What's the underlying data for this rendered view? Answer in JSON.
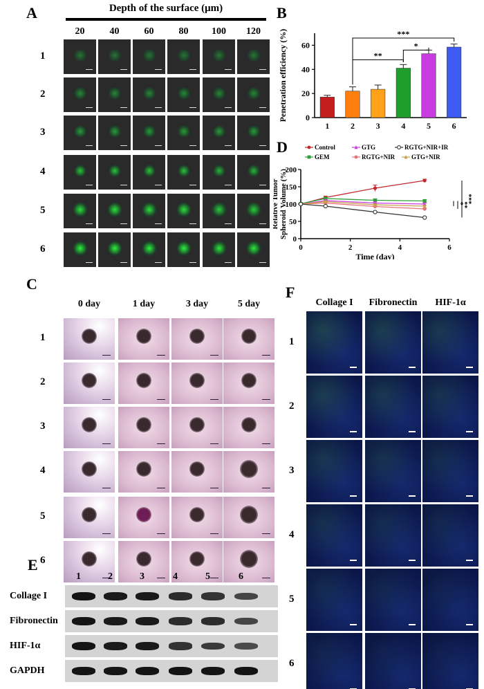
{
  "panels": {
    "A": {
      "label": "A",
      "title": "Depth of the surface (μm)",
      "depths": [
        "20",
        "40",
        "60",
        "80",
        "100",
        "120"
      ],
      "rows": [
        "1",
        "2",
        "3",
        "4",
        "5",
        "6"
      ]
    },
    "B": {
      "label": "B"
    },
    "C": {
      "label": "C",
      "days": [
        "0 day",
        "1 day",
        "3 day",
        "5 day"
      ],
      "rows": [
        "1",
        "2",
        "3",
        "4",
        "5",
        "6"
      ]
    },
    "D": {
      "label": "D"
    },
    "E": {
      "label": "E",
      "lanes": [
        "1",
        "2",
        "3",
        "4",
        "5",
        "6"
      ],
      "proteins": [
        "Collage I",
        "Fibronectin",
        "HIF-1α",
        "GAPDH"
      ],
      "band_intensity": [
        [
          1.0,
          0.95,
          0.95,
          0.8,
          0.75,
          0.6
        ],
        [
          1.0,
          0.95,
          0.95,
          0.8,
          0.8,
          0.6
        ],
        [
          1.0,
          0.95,
          0.95,
          0.75,
          0.7,
          0.55
        ],
        [
          1.0,
          1.0,
          1.0,
          1.0,
          1.0,
          1.0
        ]
      ]
    },
    "F": {
      "label": "F",
      "stains": [
        "Collage I",
        "Fibronectin",
        "HIF-1α"
      ],
      "rows": [
        "1",
        "2",
        "3",
        "4",
        "5",
        "6"
      ]
    }
  },
  "chart_data": [
    {
      "panel": "B",
      "type": "bar",
      "ylabel": "Penetration efficiency (%)",
      "categories": [
        "1",
        "2",
        "3",
        "4",
        "5",
        "6"
      ],
      "values": [
        17,
        22,
        23.5,
        41,
        53,
        58.5
      ],
      "errors": [
        1.5,
        3.5,
        3.5,
        3,
        3,
        2.5
      ],
      "colors": [
        "#c41e1e",
        "#ff7f0e",
        "#ffa21a",
        "#1f9e2d",
        "#c93ae0",
        "#3d5af2"
      ],
      "ylim": [
        0,
        70
      ],
      "yticks": [
        "0",
        "20",
        "40",
        "60"
      ],
      "significance": [
        {
          "from": "2",
          "to": "4",
          "label": "**"
        },
        {
          "from": "4",
          "to": "5",
          "label": "*"
        },
        {
          "from": "2",
          "to": "6",
          "label": "***"
        }
      ]
    },
    {
      "panel": "D",
      "type": "line",
      "xlabel": "Time (day)",
      "ylabel": "Relative Tumor Spheroid Volume (%)",
      "xlim": [
        0,
        6
      ],
      "ylim": [
        0,
        200
      ],
      "xticks": [
        "0",
        "2",
        "4",
        "6"
      ],
      "yticks": [
        "0",
        "50",
        "100",
        "150",
        "200"
      ],
      "x": [
        0,
        1,
        3,
        5
      ],
      "series": [
        {
          "name": "Control",
          "color": "#c0282d",
          "marker": "circle-filled",
          "values": [
            100,
            119,
            146,
            168
          ],
          "errors": [
            3,
            4,
            9,
            4
          ]
        },
        {
          "name": "GEM",
          "color": "#2e9e3a",
          "marker": "square",
          "values": [
            101,
            116,
            111,
            109
          ],
          "errors": [
            2,
            3,
            4,
            4
          ]
        },
        {
          "name": "GTG",
          "color": "#c93ae0",
          "marker": "triangle",
          "values": [
            100,
            110,
            103,
            100
          ],
          "errors": [
            2,
            3,
            3,
            3
          ]
        },
        {
          "name": "RGTG+NIR",
          "color": "#e8707a",
          "marker": "circle",
          "values": [
            100,
            103,
            93,
            86
          ],
          "errors": [
            2,
            2,
            2,
            2
          ]
        },
        {
          "name": "GTG+NIR",
          "color": "#c9a04a",
          "marker": "triangle",
          "values": [
            100,
            107,
            98,
            94
          ],
          "errors": [
            2,
            2,
            2,
            2
          ]
        },
        {
          "name": "RGTG+NIR+IR",
          "color": "#333333",
          "marker": "circle-open",
          "values": [
            100,
            94,
            77,
            61
          ],
          "errors": [
            2,
            2,
            2,
            2
          ]
        }
      ],
      "significance": [
        "***",
        "**",
        "*"
      ]
    }
  ]
}
